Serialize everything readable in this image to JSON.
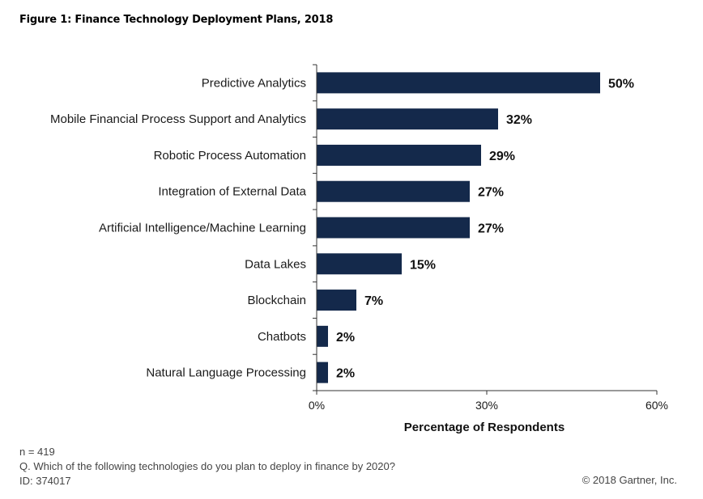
{
  "figure_title": "Figure 1: Finance Technology Deployment Plans, 2018",
  "footnotes": {
    "n": "n = 419",
    "question": "Q. Which of the following technologies do you plan to deploy in finance by 2020?",
    "id": "ID: 374017"
  },
  "copyright": "© 2018 Gartner, Inc.",
  "colors": {
    "bar": "#14294b",
    "axis": "#333333"
  },
  "chart_data": {
    "type": "bar",
    "orientation": "horizontal",
    "title": "Figure 1: Finance Technology Deployment Plans, 2018",
    "xlabel": "Percentage of Respondents",
    "ylabel": "",
    "xlim": [
      0,
      60
    ],
    "x_ticks": [
      0,
      30,
      60
    ],
    "x_tick_labels": [
      "0%",
      "30%",
      "60%"
    ],
    "grid": false,
    "legend": "none",
    "categories": [
      "Predictive Analytics",
      "Mobile Financial Process Support and Analytics",
      "Robotic Process Automation",
      "Integration of External Data",
      "Artificial Intelligence/Machine Learning",
      "Data Lakes",
      "Blockchain",
      "Chatbots",
      "Natural Language Processing"
    ],
    "values": [
      50,
      32,
      29,
      27,
      27,
      15,
      7,
      2,
      2
    ],
    "value_labels": [
      "50%",
      "32%",
      "29%",
      "27%",
      "27%",
      "15%",
      "7%",
      "2%",
      "2%"
    ]
  }
}
